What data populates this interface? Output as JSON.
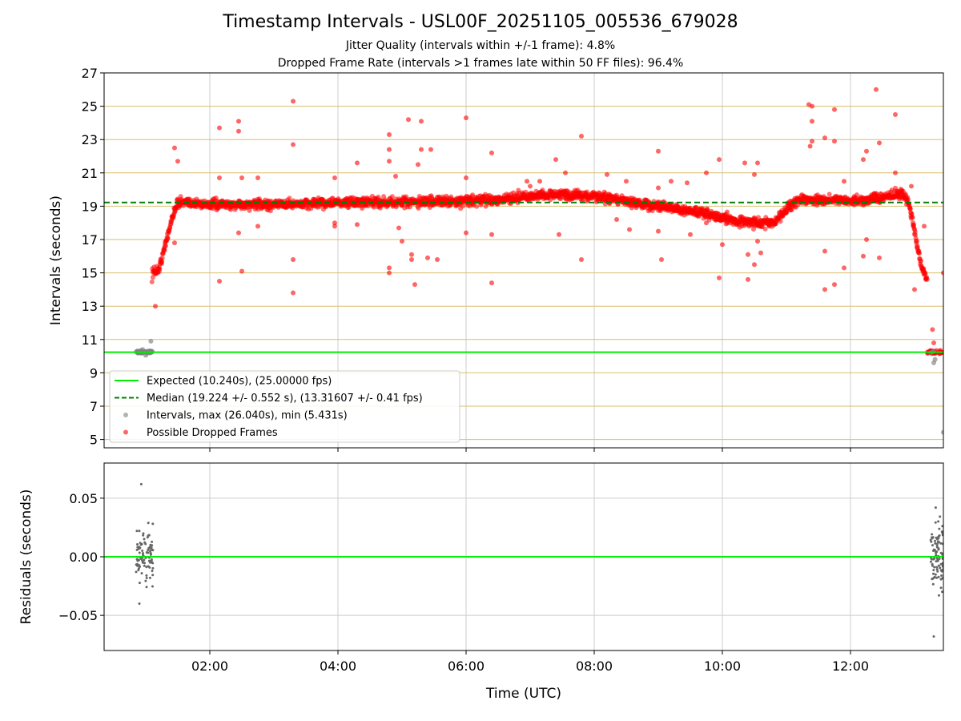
{
  "header": {
    "title": "Timestamp Intervals - USL00F_20251105_005536_679028",
    "subtitle_jitter": "Jitter Quality (intervals within +/-1 frame): 4.8%",
    "subtitle_dropped": "Dropped Frame Rate (intervals >1 frames late within 50 FF files): 96.4%"
  },
  "colors": {
    "expected": "#00ee00",
    "median": "#008000",
    "intervals": "#808080",
    "dropped": "#ff0000",
    "hgrid": "#dbbf6b",
    "grid": "#cccccc"
  },
  "chart_data": [
    {
      "type": "scatter",
      "name": "intervals",
      "xlabel": "Time (UTC)",
      "ylabel": "Intervals (seconds)",
      "xlim_hours": [
        0.35,
        13.45
      ],
      "ylim": [
        4.5,
        27
      ],
      "x_ticks": [
        {
          "h": 2,
          "label": "02:00"
        },
        {
          "h": 4,
          "label": "04:00"
        },
        {
          "h": 6,
          "label": "06:00"
        },
        {
          "h": 8,
          "label": "08:00"
        },
        {
          "h": 10,
          "label": "10:00"
        },
        {
          "h": 12,
          "label": "12:00"
        }
      ],
      "y_ticks": [
        {
          "v": 5,
          "label": "5"
        },
        {
          "v": 7,
          "label": "7"
        },
        {
          "v": 9,
          "label": "9"
        },
        {
          "v": 11,
          "label": "11"
        },
        {
          "v": 13,
          "label": "13"
        },
        {
          "v": 15,
          "label": "15"
        },
        {
          "v": 17,
          "label": "17"
        },
        {
          "v": 19,
          "label": "19"
        },
        {
          "v": 21,
          "label": "21"
        },
        {
          "v": 23,
          "label": "23"
        },
        {
          "v": 25,
          "label": "25"
        },
        {
          "v": 27,
          "label": "27"
        }
      ],
      "expected_interval": 10.24,
      "median_interval": 19.224,
      "legend": {
        "expected": "Expected (10.240s), (25.00000 fps)",
        "median": "Median (19.224 +/- 0.552 s), (13.31607 +/- 0.41 fps)",
        "intervals": "Intervals, max (26.040s), min (5.431s)",
        "dropped": "Possible Dropped Frames"
      },
      "series": [
        {
          "name": "Possible Dropped Frames",
          "trend": {
            "x": [
              1.1,
              1.2,
              1.25,
              1.3,
              1.35,
              1.4,
              1.45,
              1.5,
              1.55,
              1.6,
              2.0,
              3.0,
              4.0,
              5.0,
              6.0,
              6.5,
              7.0,
              7.5,
              8.0,
              8.5,
              9.0,
              9.5,
              10.0,
              10.3,
              10.6,
              10.85,
              11.0,
              11.2,
              11.5,
              12.0,
              12.5,
              12.7,
              12.8,
              12.9,
              12.95,
              13.0,
              13.05,
              13.1,
              13.15,
              13.2
            ],
            "y": [
              15.0,
              15.2,
              15.8,
              16.6,
              17.4,
              18.1,
              18.8,
              19.2,
              19.3,
              19.2,
              19.1,
              19.1,
              19.2,
              19.25,
              19.3,
              19.4,
              19.6,
              19.7,
              19.6,
              19.3,
              19.0,
              18.7,
              18.3,
              18.1,
              18.0,
              18.1,
              18.9,
              19.4,
              19.4,
              19.3,
              19.5,
              19.7,
              19.8,
              19.3,
              18.5,
              17.5,
              16.5,
              15.5,
              15.0,
              14.5
            ]
          },
          "outliers": {
            "x": [
              1.45,
              1.5,
              1.45,
              1.15,
              2.15,
              2.15,
              2.45,
              2.45,
              2.5,
              2.15,
              2.45,
              2.5,
              2.75,
              2.75,
              3.3,
              3.3,
              3.3,
              3.3,
              3.95,
              3.95,
              3.95,
              4.3,
              4.3,
              4.8,
              4.8,
              4.8,
              4.8,
              4.8,
              4.9,
              4.95,
              5.1,
              5.15,
              5.15,
              5.2,
              5.25,
              5.3,
              5.3,
              5.4,
              5.45,
              5.55,
              5.0,
              6.0,
              6.0,
              6.0,
              6.4,
              6.4,
              6.4,
              6.95,
              7.0,
              7.15,
              7.4,
              7.45,
              7.55,
              7.8,
              7.8,
              8.2,
              8.35,
              8.5,
              8.55,
              9.0,
              9.0,
              9.0,
              9.05,
              9.2,
              9.45,
              9.5,
              9.75,
              9.75,
              9.95,
              9.95,
              10.0,
              10.35,
              10.4,
              10.4,
              10.5,
              10.5,
              10.55,
              10.55,
              10.6,
              11.35,
              11.37,
              11.4,
              11.4,
              11.4,
              11.6,
              11.6,
              11.6,
              11.75,
              11.75,
              11.75,
              11.9,
              11.9,
              12.2,
              12.25,
              12.25,
              12.2,
              12.4,
              12.45,
              12.45,
              12.7,
              12.7,
              12.95,
              13.0,
              13.15,
              13.45
            ],
            "y": [
              22.5,
              21.7,
              16.8,
              13.0,
              23.7,
              20.7,
              24.1,
              23.5,
              20.7,
              14.5,
              17.4,
              15.1,
              20.7,
              17.8,
              25.3,
              22.7,
              15.8,
              13.8,
              20.7,
              18.0,
              17.8,
              21.6,
              17.9,
              23.3,
              22.4,
              21.7,
              15.3,
              15.0,
              20.8,
              17.7,
              24.2,
              16.1,
              15.8,
              14.3,
              21.5,
              24.1,
              22.4,
              15.9,
              22.4,
              15.8,
              16.9,
              24.3,
              20.7,
              17.4,
              22.2,
              17.3,
              14.4,
              20.5,
              20.2,
              20.5,
              21.8,
              17.3,
              21.0,
              23.2,
              15.8,
              20.9,
              18.2,
              20.5,
              17.6,
              22.3,
              20.1,
              17.5,
              15.8,
              20.5,
              20.4,
              17.3,
              21.0,
              18.0,
              21.8,
              14.7,
              16.7,
              21.6,
              16.1,
              14.6,
              20.9,
              15.5,
              21.6,
              16.9,
              16.2,
              25.1,
              22.6,
              25.0,
              22.9,
              24.1,
              23.1,
              16.3,
              14.0,
              24.8,
              22.9,
              14.3,
              20.5,
              15.3,
              21.8,
              22.3,
              17.0,
              16.0,
              26.0,
              22.8,
              15.9,
              21.0,
              24.5,
              20.2,
              14.0,
              17.8,
              15.0
            ]
          }
        },
        {
          "name": "Intervals",
          "points": {
            "x": [
              0.85,
              0.88,
              0.9,
              0.93,
              0.95,
              0.97,
              1.0,
              1.02,
              1.05,
              1.08,
              1.1,
              0.95,
              1.0,
              1.08,
              13.25,
              13.28,
              13.3,
              13.32,
              13.3,
              13.45
            ],
            "y": [
              10.25,
              10.25,
              10.22,
              10.28,
              10.2,
              10.3,
              10.25,
              10.2,
              10.25,
              10.3,
              10.25,
              10.4,
              10.05,
              10.9,
              10.2,
              10.25,
              9.6,
              9.8,
              10.3,
              5.43
            ]
          }
        }
      ]
    },
    {
      "type": "scatter",
      "name": "residuals",
      "ylabel": "Residuals (seconds)",
      "ylim": [
        -0.08,
        0.08
      ],
      "y_ticks": [
        {
          "v": 0.05,
          "label": "0.05"
        },
        {
          "v": 0.0,
          "label": "0.00"
        },
        {
          "v": -0.05,
          "label": "−0.05"
        }
      ],
      "zero_line": 0.0,
      "clusters": [
        {
          "x_range_hours": [
            0.85,
            1.12
          ],
          "y_min": -0.04,
          "y_max": 0.062
        },
        {
          "x_range_hours": [
            13.25,
            13.45
          ],
          "y_min": -0.068,
          "y_max": 0.042
        }
      ]
    }
  ]
}
